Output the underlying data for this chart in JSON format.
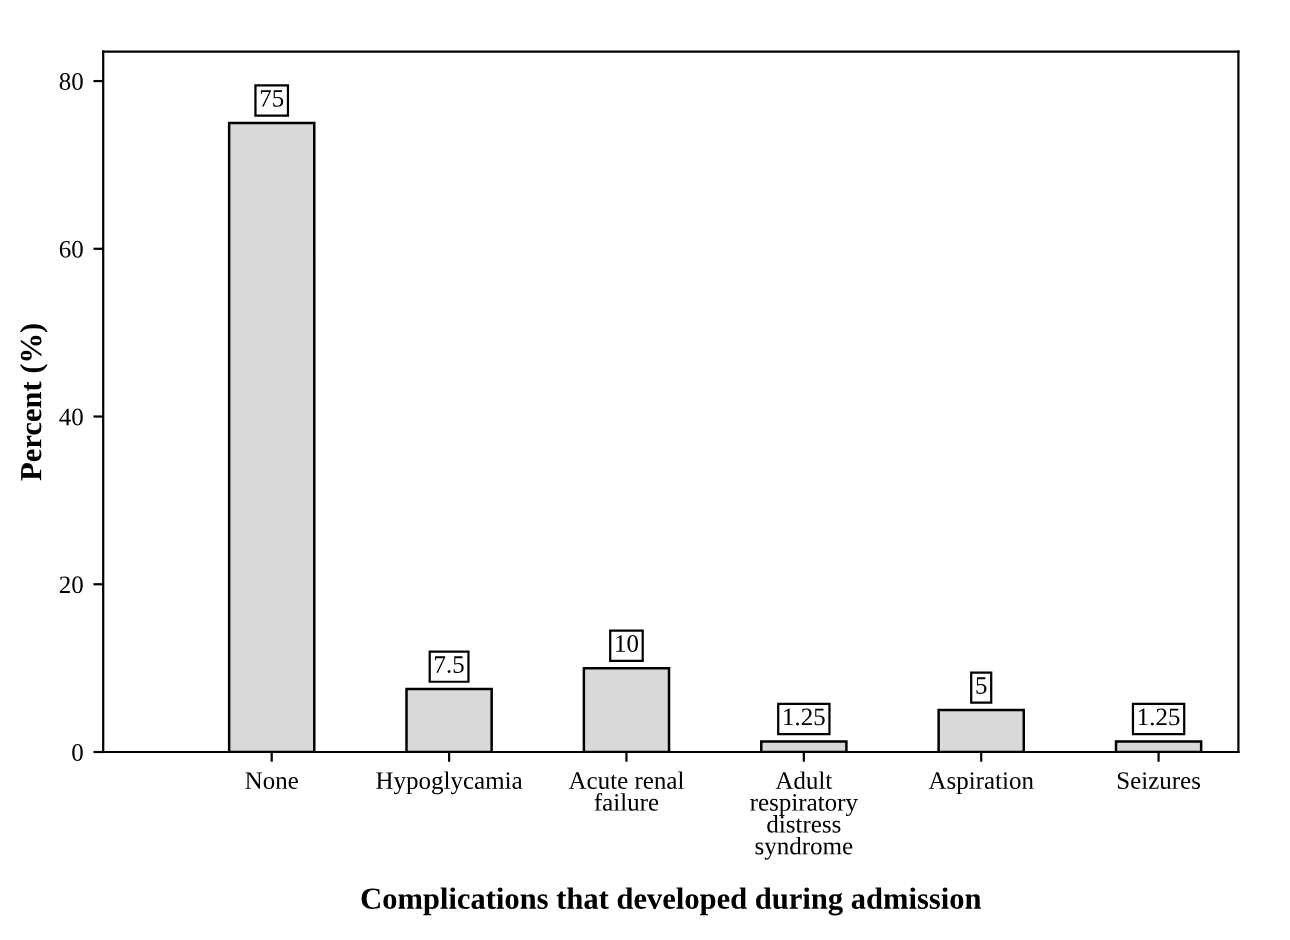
{
  "chart_data": {
    "type": "bar",
    "xlabel": "Complications that developed during admission",
    "ylabel": "Percent (%)",
    "categories": [
      "None",
      "Hypoglycamia",
      "Acute renal\nfailure",
      "Adult\nrespiratory\ndistress\nsyndrome",
      "Aspiration",
      "Seizures"
    ],
    "values": [
      75,
      7.5,
      10,
      1.25,
      5,
      1.25
    ],
    "color": "#d9d9d9",
    "ylim": [
      0,
      83.5
    ],
    "yticks": [
      0,
      20,
      40,
      60,
      80
    ],
    "data_labels": true,
    "grid": false,
    "legend": false
  }
}
